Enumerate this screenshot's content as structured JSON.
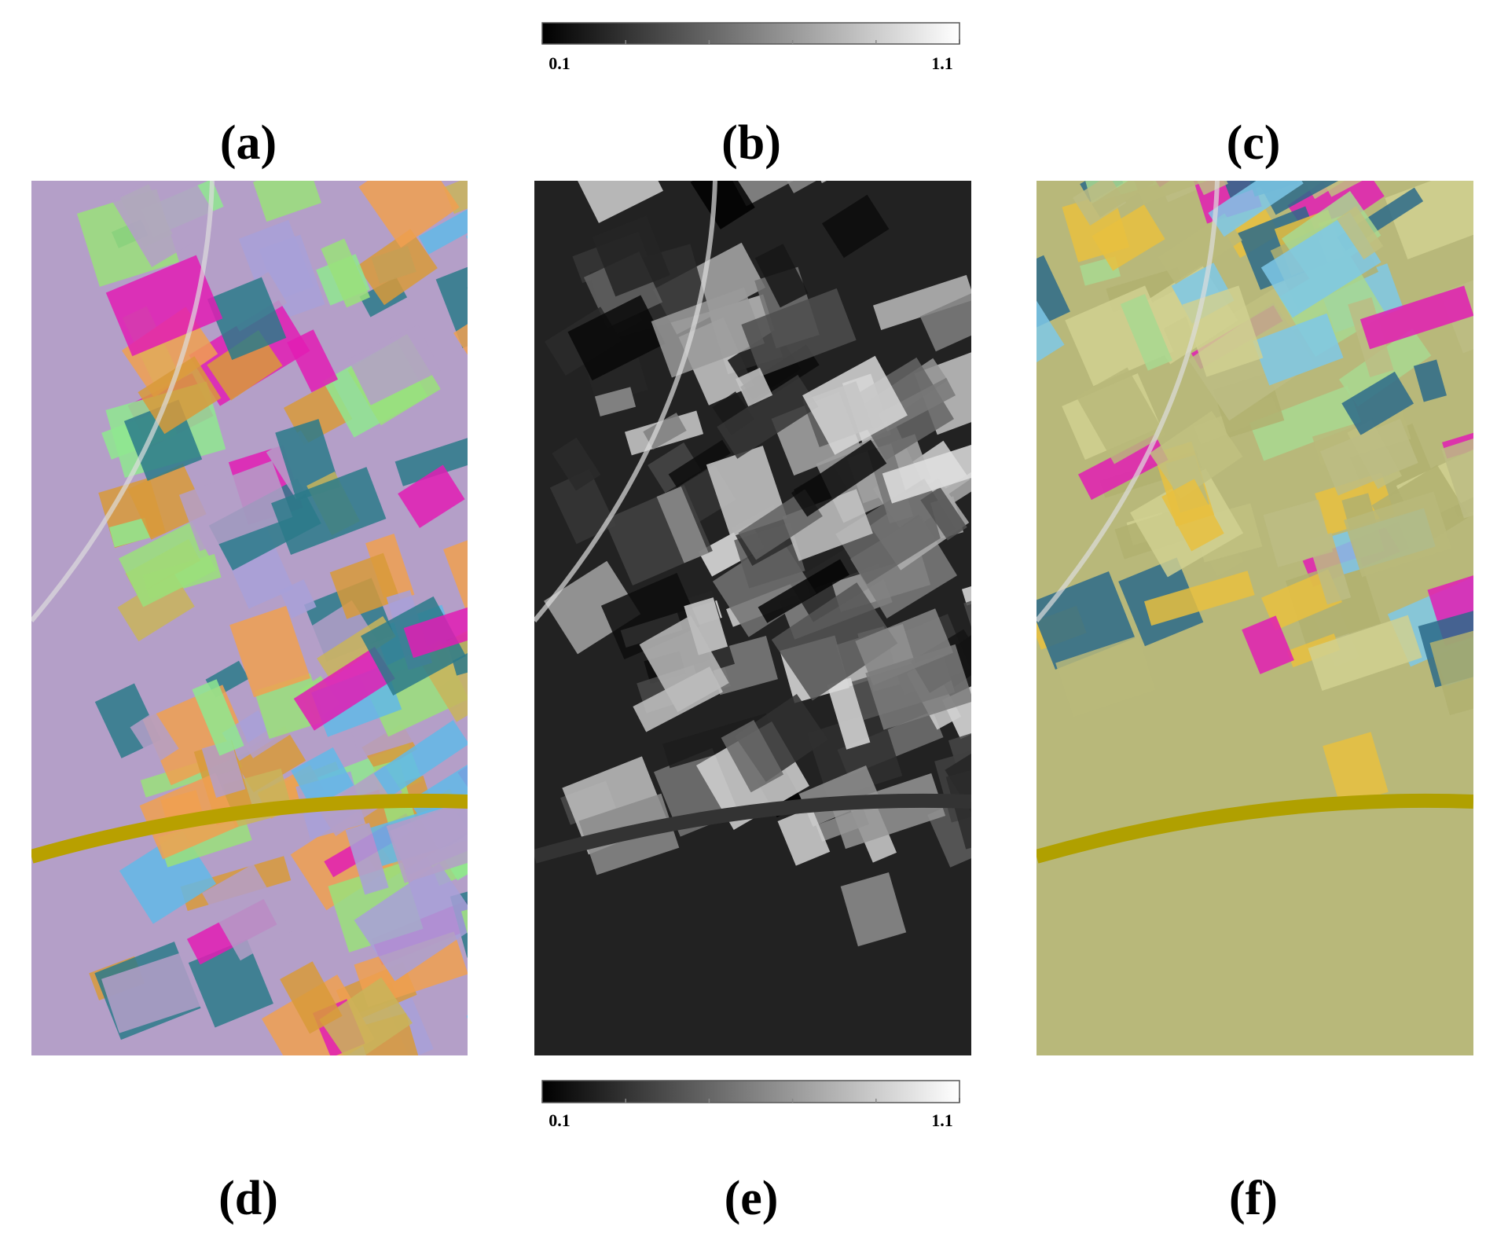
{
  "panels": [
    {
      "label": "(a)"
    },
    {
      "label": "(b)"
    },
    {
      "label": "(c)"
    },
    {
      "label": "(d)"
    },
    {
      "label": "(e)"
    },
    {
      "label": "(f)"
    }
  ],
  "colorbars": [
    {
      "lim": [
        0.1,
        1.1
      ],
      "ticks": [
        0.1,
        1.1
      ]
    },
    {
      "lim": [
        0.1,
        1.1
      ],
      "ticks": [
        0.1,
        1.1
      ]
    }
  ]
}
